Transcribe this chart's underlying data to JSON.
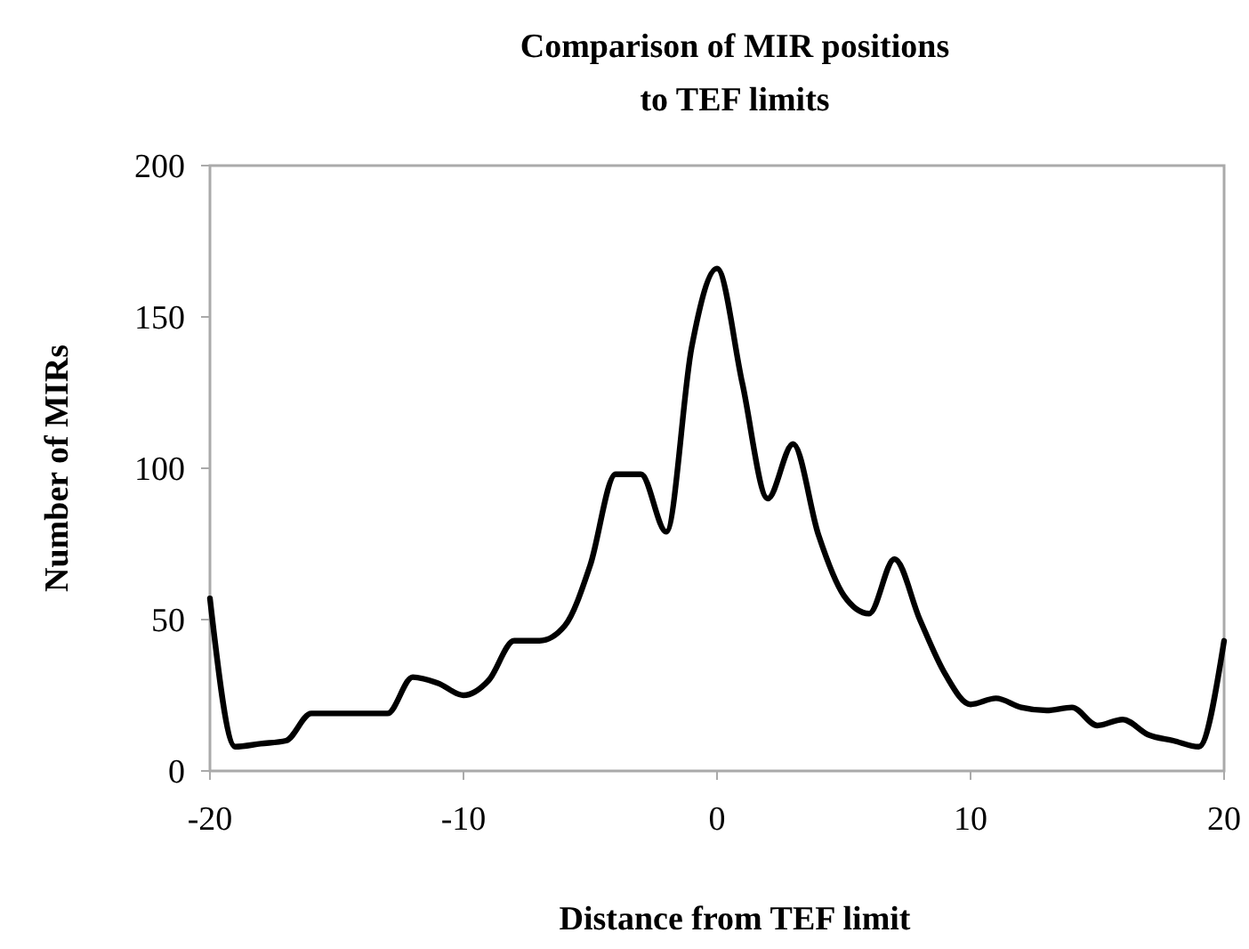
{
  "chart_data": {
    "type": "line",
    "title": "Comparison of MIR positions to TEF limits",
    "xlabel": "Distance from TEF limit",
    "ylabel": "Number of MIRs",
    "x": [
      -20,
      -19,
      -18,
      -17,
      -16,
      -15,
      -14,
      -13,
      -12,
      -11,
      -10,
      -9,
      -8,
      -7,
      -6,
      -5,
      -4,
      -3,
      -2,
      -1,
      0,
      1,
      2,
      3,
      4,
      5,
      6,
      7,
      8,
      9,
      10,
      11,
      12,
      13,
      14,
      15,
      16,
      17,
      18,
      19,
      20
    ],
    "series": [
      {
        "color": "#000000",
        "values": [
          57,
          8,
          9,
          10,
          19,
          19,
          19,
          19,
          31,
          29,
          25,
          30,
          43,
          43,
          48,
          68,
          98,
          98,
          79,
          140,
          166,
          128,
          90,
          108,
          78,
          58,
          52,
          70,
          50,
          32,
          22,
          24,
          21,
          20,
          21,
          15,
          17,
          12,
          10,
          8,
          43
        ]
      }
    ],
    "xlim": [
      -20,
      20
    ],
    "xticks": [
      -20,
      -10,
      0,
      10,
      20
    ],
    "ylim": [
      0,
      200
    ],
    "yticks": [
      0,
      50,
      100,
      150,
      200
    ],
    "grid": false,
    "marker": "none",
    "line_style": "solid"
  }
}
